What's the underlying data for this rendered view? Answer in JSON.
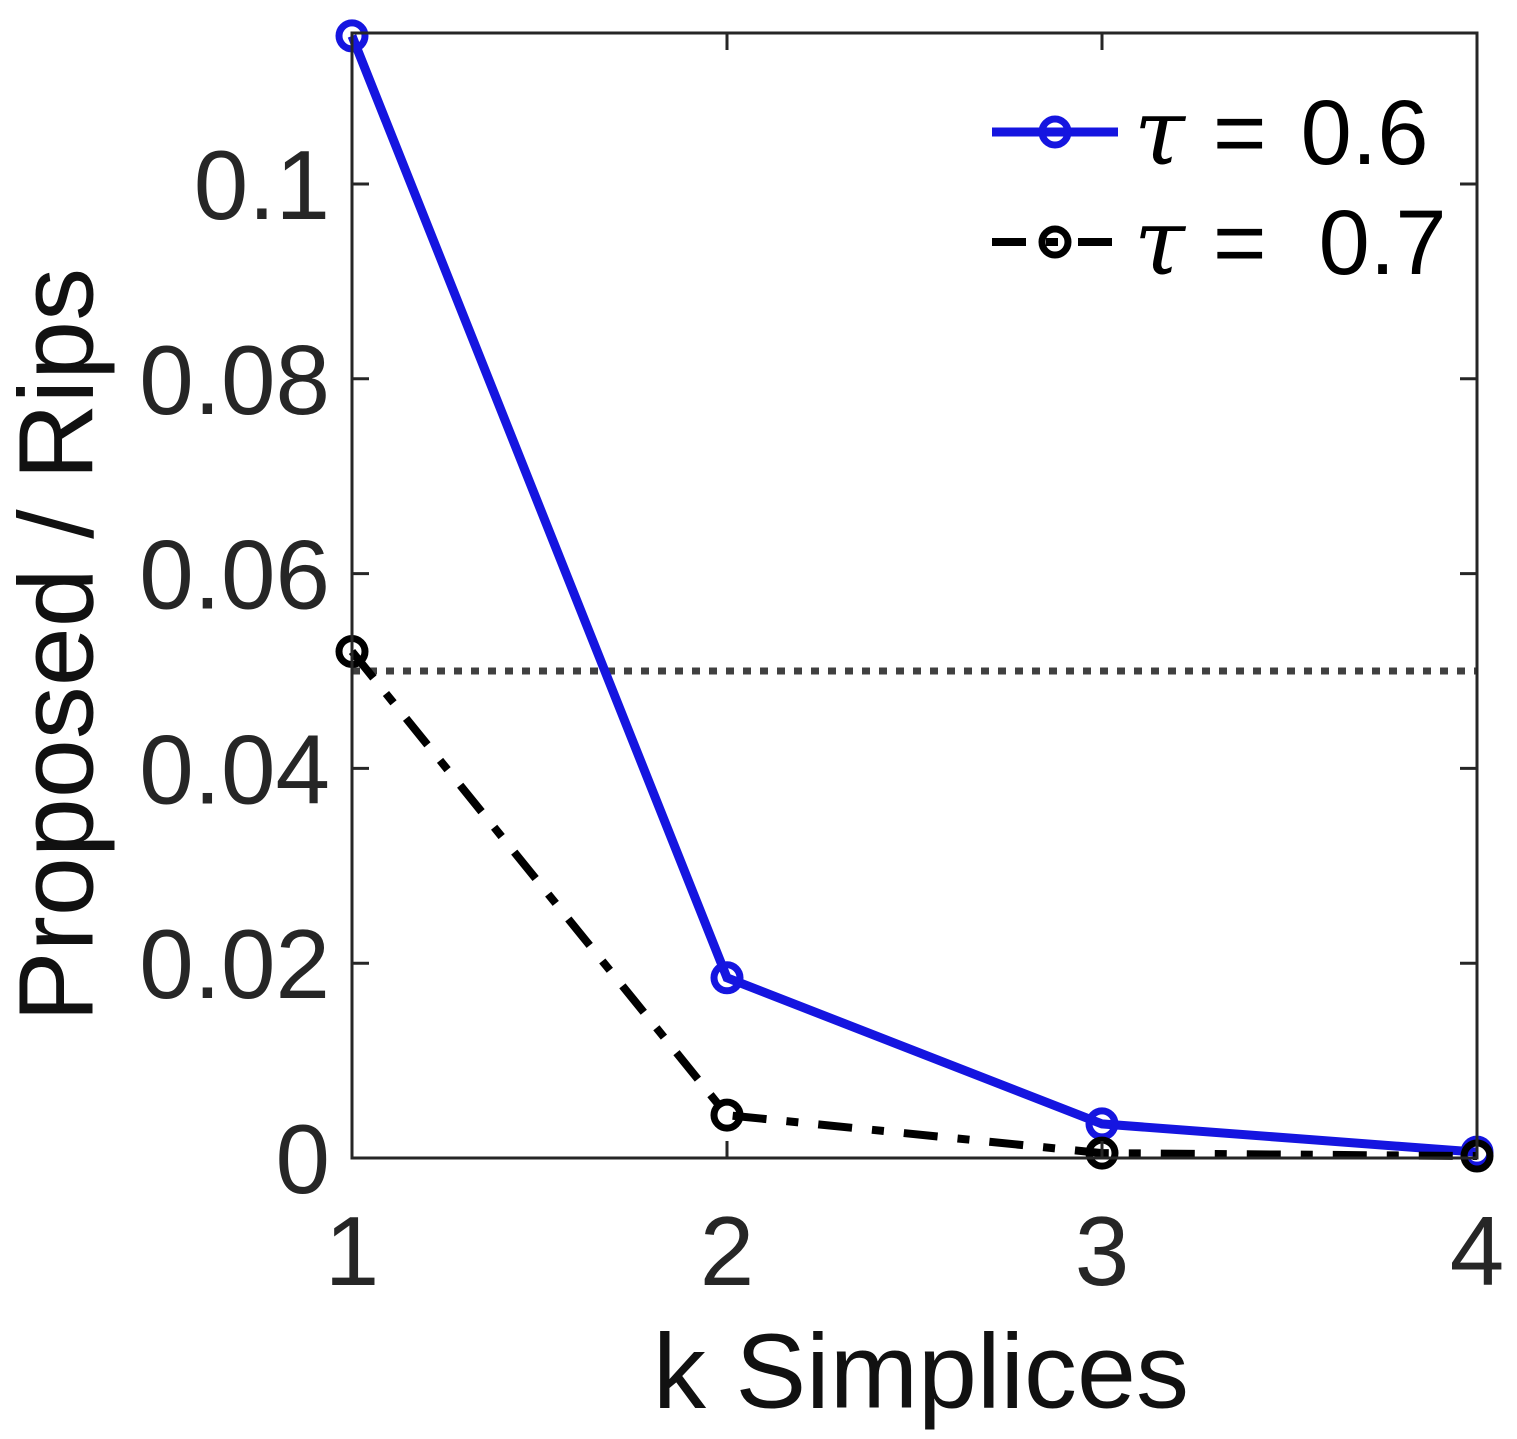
{
  "axis": {
    "frame_color": "#262626",
    "tick_label_color": "#262626",
    "background": "#ffffff"
  },
  "chart_data": {
    "type": "line",
    "title": "",
    "xlabel": "k Simplices",
    "ylabel": "Proposed / Rips",
    "xlim": [
      1,
      4
    ],
    "ylim": [
      0,
      0.1155
    ],
    "grid": "off",
    "x_ticks": [
      {
        "value": 1,
        "label": "1"
      },
      {
        "value": 2,
        "label": "2"
      },
      {
        "value": 3,
        "label": "3"
      },
      {
        "value": 4,
        "label": "4"
      }
    ],
    "y_ticks": [
      {
        "value": 0,
        "label": "0"
      },
      {
        "value": 0.02,
        "label": "0.02"
      },
      {
        "value": 0.04,
        "label": "0.04"
      },
      {
        "value": 0.06,
        "label": "0.06"
      },
      {
        "value": 0.08,
        "label": "0.08"
      },
      {
        "value": 0.1,
        "label": "0.1"
      }
    ],
    "series": [
      {
        "name": "τ = 0.6",
        "color": "#1515e0",
        "line_style": "solid",
        "line_width": 9,
        "marker": "circle",
        "x": [
          1,
          2,
          3,
          4
        ],
        "values": [
          0.1152,
          0.0185,
          0.0035,
          0.0006
        ]
      },
      {
        "name": "τ = 0.7",
        "color": "#000000",
        "line_style": "dash-dot",
        "line_width": 8,
        "marker": "circle",
        "x": [
          1,
          2,
          3,
          4
        ],
        "values": [
          0.052,
          0.0044,
          0.0005,
          0.0002
        ]
      }
    ],
    "reference_line": {
      "y": 0.05,
      "color": "#404040",
      "line_style": "dotted",
      "line_width": 7
    },
    "legend": {
      "position": "top-right",
      "entries": [
        {
          "symbol": "τ",
          "relation": "=",
          "value": "0.6"
        },
        {
          "symbol": "τ",
          "relation": "=",
          "value": "0.7"
        }
      ]
    }
  }
}
